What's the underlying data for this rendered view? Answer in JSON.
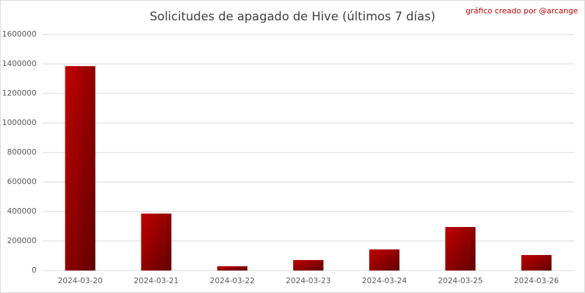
{
  "chart_data": {
    "type": "bar",
    "title": "Solicitudes de apagado de Hive (últimos 7 días)",
    "credit": "gráfico creado por @arcange",
    "categories": [
      "2024-03-20",
      "2024-03-21",
      "2024-03-22",
      "2024-03-23",
      "2024-03-24",
      "2024-03-25",
      "2024-03-26"
    ],
    "values": [
      1385000,
      386000,
      29000,
      71000,
      143000,
      295000,
      105000
    ],
    "color": "#c00000",
    "ylim": [
      0,
      1600000
    ],
    "yticks": [
      0,
      200000,
      400000,
      600000,
      800000,
      1000000,
      1200000,
      1400000,
      1600000
    ],
    "grid": true
  }
}
